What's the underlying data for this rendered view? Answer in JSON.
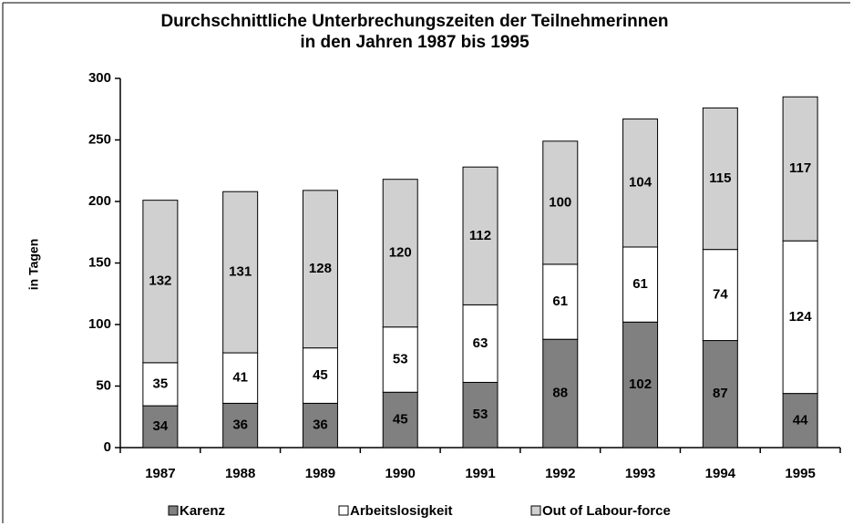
{
  "chart_data": {
    "type": "stacked-bar",
    "title": [
      "Durchschnittliche Unterbrechungszeiten der Teilnehmerinnen",
      "in den Jahren 1987 bis 1995"
    ],
    "y_label": "in Tagen",
    "categories": [
      "1987",
      "1988",
      "1989",
      "1990",
      "1991",
      "1992",
      "1993",
      "1994",
      "1995"
    ],
    "series": [
      {
        "name": "Karenz",
        "color": "#808080",
        "values": [
          34,
          36,
          36,
          45,
          53,
          88,
          102,
          87,
          44
        ]
      },
      {
        "name": "Arbeitslosigkeit",
        "color": "#ffffff",
        "values": [
          35,
          41,
          45,
          53,
          63,
          61,
          61,
          74,
          124
        ]
      },
      {
        "name": "Out of Labour-force",
        "color": "#d0d0d0",
        "values": [
          132,
          131,
          128,
          120,
          112,
          100,
          104,
          115,
          117
        ]
      }
    ],
    "ylim": [
      0,
      300
    ],
    "yticks": [
      0,
      50,
      100,
      150,
      200,
      250,
      300
    ],
    "legend": "bottom"
  }
}
